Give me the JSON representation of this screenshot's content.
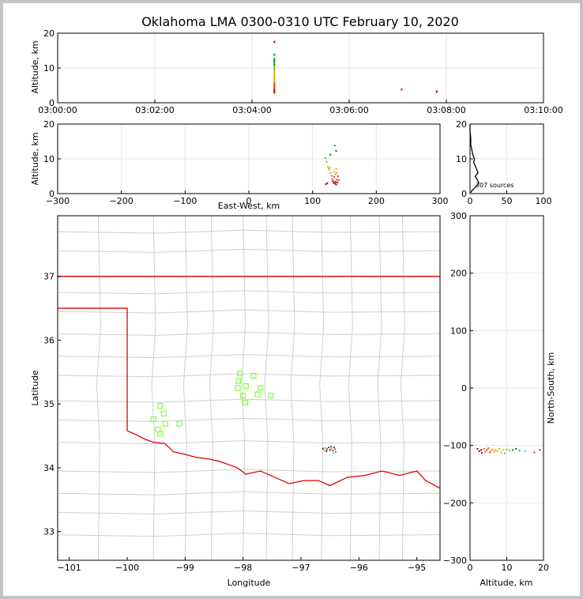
{
  "chart_data": {
    "type": "scatter",
    "title": "Oklahoma LMA 0300-0310 UTC February 10, 2020",
    "panels": {
      "time_altitude": {
        "ylabel": "Altitude, km",
        "xlim": [
          "03:00:00",
          "03:10:00"
        ],
        "ylim": [
          0,
          20
        ],
        "xticks": [
          "03:00:00",
          "03:02:00",
          "03:04:00",
          "03:06:00",
          "03:08:00",
          "03:10:00"
        ],
        "yticks": [
          "0",
          "10",
          "20"
        ]
      },
      "ew_altitude": {
        "xlabel": "East-West, km",
        "ylabel": "Altitude, km",
        "xlim": [
          -300,
          300
        ],
        "ylim": [
          0,
          20
        ],
        "xticks": [
          "−300",
          "−200",
          "−100",
          "0",
          "100",
          "200",
          "300"
        ],
        "yticks": [
          "0",
          "10",
          "20"
        ]
      },
      "histogram": {
        "xlim": [
          0,
          100
        ],
        "ylim": [
          0,
          20
        ],
        "xticks": [
          "0",
          "50",
          "100"
        ],
        "yticks": [
          "0",
          "10",
          "20"
        ],
        "annotation": "307 sources"
      },
      "plan": {
        "xlabel": "Longitude",
        "ylabel": "Latitude",
        "xlim": [
          -101.2,
          -94.6
        ],
        "ylim": [
          32.55,
          37.95
        ],
        "xticks": [
          "−101",
          "−100",
          "−99",
          "−98",
          "−97",
          "−96",
          "−95"
        ],
        "yticks": [
          "33",
          "34",
          "35",
          "36",
          "37"
        ]
      },
      "altitude_ns": {
        "xlabel": "Altitude, km",
        "ylabel": "North-South, km",
        "xlim": [
          0,
          20
        ],
        "ylim": [
          -300,
          300
        ],
        "xticks": [
          "0",
          "10",
          "20"
        ],
        "yticks": [
          "−300",
          "−200",
          "−100",
          "0",
          "100",
          "200",
          "300"
        ]
      }
    },
    "time_altitude_points": [
      {
        "t": 4.46,
        "alt": 3.0
      },
      {
        "t": 4.46,
        "alt": 3.6
      },
      {
        "t": 4.46,
        "alt": 4.2
      },
      {
        "t": 4.46,
        "alt": 4.8
      },
      {
        "t": 4.46,
        "alt": 5.4
      },
      {
        "t": 4.46,
        "alt": 6.0
      },
      {
        "t": 4.46,
        "alt": 6.6
      },
      {
        "t": 4.46,
        "alt": 7.2
      },
      {
        "t": 4.46,
        "alt": 7.8
      },
      {
        "t": 4.46,
        "alt": 8.4
      },
      {
        "t": 4.46,
        "alt": 9.0
      },
      {
        "t": 4.46,
        "alt": 9.6
      },
      {
        "t": 4.46,
        "alt": 10.3
      },
      {
        "t": 4.46,
        "alt": 11.0
      },
      {
        "t": 4.46,
        "alt": 11.8
      },
      {
        "t": 4.46,
        "alt": 12.5
      },
      {
        "t": 4.46,
        "alt": 13.8
      },
      {
        "t": 4.46,
        "alt": 17.5
      },
      {
        "t": 7.08,
        "alt": 3.8
      },
      {
        "t": 7.8,
        "alt": 3.2
      }
    ],
    "ew_altitude_points": [
      {
        "x": 120,
        "alt": 10.2
      },
      {
        "x": 122,
        "alt": 9.1
      },
      {
        "x": 124,
        "alt": 7.8
      },
      {
        "x": 125,
        "alt": 7.2
      },
      {
        "x": 126,
        "alt": 6.9
      },
      {
        "x": 127,
        "alt": 7.5
      },
      {
        "x": 128,
        "alt": 5.9
      },
      {
        "x": 128,
        "alt": 11.2
      },
      {
        "x": 130,
        "alt": 5.1
      },
      {
        "x": 131,
        "alt": 4.2
      },
      {
        "x": 132,
        "alt": 3.6
      },
      {
        "x": 133,
        "alt": 3.1
      },
      {
        "x": 134,
        "alt": 4.8
      },
      {
        "x": 134,
        "alt": 6.3
      },
      {
        "x": 135,
        "alt": 13.8
      },
      {
        "x": 135,
        "alt": 2.9
      },
      {
        "x": 136,
        "alt": 3.4
      },
      {
        "x": 136,
        "alt": 5.5
      },
      {
        "x": 137,
        "alt": 12.3
      },
      {
        "x": 137,
        "alt": 7.1
      },
      {
        "x": 138,
        "alt": 4.0
      },
      {
        "x": 138,
        "alt": 6.0
      },
      {
        "x": 139,
        "alt": 3.2
      },
      {
        "x": 140,
        "alt": 5.0
      },
      {
        "x": 141,
        "alt": 3.8
      },
      {
        "x": 123,
        "alt": 3.0
      },
      {
        "x": 121,
        "alt": 2.7
      },
      {
        "x": 137,
        "alt": 2.6
      }
    ],
    "histogram_profile": [
      {
        "alt": 0.3,
        "count": 1
      },
      {
        "alt": 1.0,
        "count": 3
      },
      {
        "alt": 2.0,
        "count": 8
      },
      {
        "alt": 3.0,
        "count": 12
      },
      {
        "alt": 4.0,
        "count": 10
      },
      {
        "alt": 5.0,
        "count": 7
      },
      {
        "alt": 6.0,
        "count": 11
      },
      {
        "alt": 7.0,
        "count": 9
      },
      {
        "alt": 8.0,
        "count": 7
      },
      {
        "alt": 9.0,
        "count": 5
      },
      {
        "alt": 10.0,
        "count": 6
      },
      {
        "alt": 11.0,
        "count": 4
      },
      {
        "alt": 12.0,
        "count": 3
      },
      {
        "alt": 13.0,
        "count": 2
      },
      {
        "alt": 14.0,
        "count": 1
      },
      {
        "alt": 16.0,
        "count": 1
      },
      {
        "alt": 18.0,
        "count": 0
      },
      {
        "alt": 20.0,
        "count": 0
      }
    ],
    "plan_points": [
      {
        "lon": -96.62,
        "lat": 34.3
      },
      {
        "lon": -96.58,
        "lat": 34.31
      },
      {
        "lon": -96.55,
        "lat": 34.29
      },
      {
        "lon": -96.52,
        "lat": 34.32
      },
      {
        "lon": -96.5,
        "lat": 34.28
      },
      {
        "lon": -96.47,
        "lat": 34.3
      },
      {
        "lon": -96.45,
        "lat": 34.27
      },
      {
        "lon": -96.43,
        "lat": 34.32
      },
      {
        "lon": -96.41,
        "lat": 34.29
      },
      {
        "lon": -96.4,
        "lat": 34.25
      },
      {
        "lon": -96.44,
        "lat": 34.24
      },
      {
        "lon": -96.56,
        "lat": 34.26
      },
      {
        "lon": -96.6,
        "lat": 34.27
      },
      {
        "lon": -96.48,
        "lat": 34.33
      }
    ],
    "stations": [
      {
        "lon": -98.05,
        "lat": 35.48
      },
      {
        "lon": -97.82,
        "lat": 35.44
      },
      {
        "lon": -98.08,
        "lat": 35.36
      },
      {
        "lon": -97.95,
        "lat": 35.28
      },
      {
        "lon": -98.09,
        "lat": 35.25
      },
      {
        "lon": -97.7,
        "lat": 35.25
      },
      {
        "lon": -97.75,
        "lat": 35.15
      },
      {
        "lon": -97.52,
        "lat": 35.13
      },
      {
        "lon": -98.0,
        "lat": 35.13
      },
      {
        "lon": -97.96,
        "lat": 35.02
      },
      {
        "lon": -99.43,
        "lat": 34.97
      },
      {
        "lon": -99.37,
        "lat": 34.85
      },
      {
        "lon": -99.55,
        "lat": 34.76
      },
      {
        "lon": -99.34,
        "lat": 34.69
      },
      {
        "lon": -99.1,
        "lat": 34.69
      },
      {
        "lon": -99.47,
        "lat": 34.6
      },
      {
        "lon": -99.43,
        "lat": 34.53
      }
    ],
    "ns_points": [
      {
        "alt": 2.0,
        "ns": -106
      },
      {
        "alt": 2.5,
        "ns": -110
      },
      {
        "alt": 3.0,
        "ns": -108
      },
      {
        "alt": 3.2,
        "ns": -113
      },
      {
        "alt": 3.8,
        "ns": -106
      },
      {
        "alt": 4.2,
        "ns": -111
      },
      {
        "alt": 4.6,
        "ns": -108
      },
      {
        "alt": 5.0,
        "ns": -105
      },
      {
        "alt": 5.4,
        "ns": -112
      },
      {
        "alt": 5.8,
        "ns": -109
      },
      {
        "alt": 6.2,
        "ns": -107
      },
      {
        "alt": 6.6,
        "ns": -111
      },
      {
        "alt": 7.0,
        "ns": -108
      },
      {
        "alt": 7.5,
        "ns": -110
      },
      {
        "alt": 8.0,
        "ns": -106
      },
      {
        "alt": 8.5,
        "ns": -112
      },
      {
        "alt": 9.0,
        "ns": -108
      },
      {
        "alt": 9.5,
        "ns": -114
      },
      {
        "alt": 10.0,
        "ns": -107
      },
      {
        "alt": 10.8,
        "ns": -109
      },
      {
        "alt": 11.6,
        "ns": -108
      },
      {
        "alt": 12.5,
        "ns": -106
      },
      {
        "alt": 13.5,
        "ns": -109
      },
      {
        "alt": 15.0,
        "ns": -110
      },
      {
        "alt": 17.5,
        "ns": -112
      },
      {
        "alt": 19.0,
        "ns": -108
      }
    ],
    "colors": {
      "state_border": "#e00000",
      "county_lines": "#cfcfcf",
      "stations": "#80ff40",
      "sources": [
        "#2f2f8f",
        "#a40000",
        "#e04010",
        "#f0a000",
        "#d0c000",
        "#70c000",
        "#008000",
        "#00a0a0",
        "#00e0e0",
        "#c800a0",
        "#e00070"
      ]
    }
  }
}
